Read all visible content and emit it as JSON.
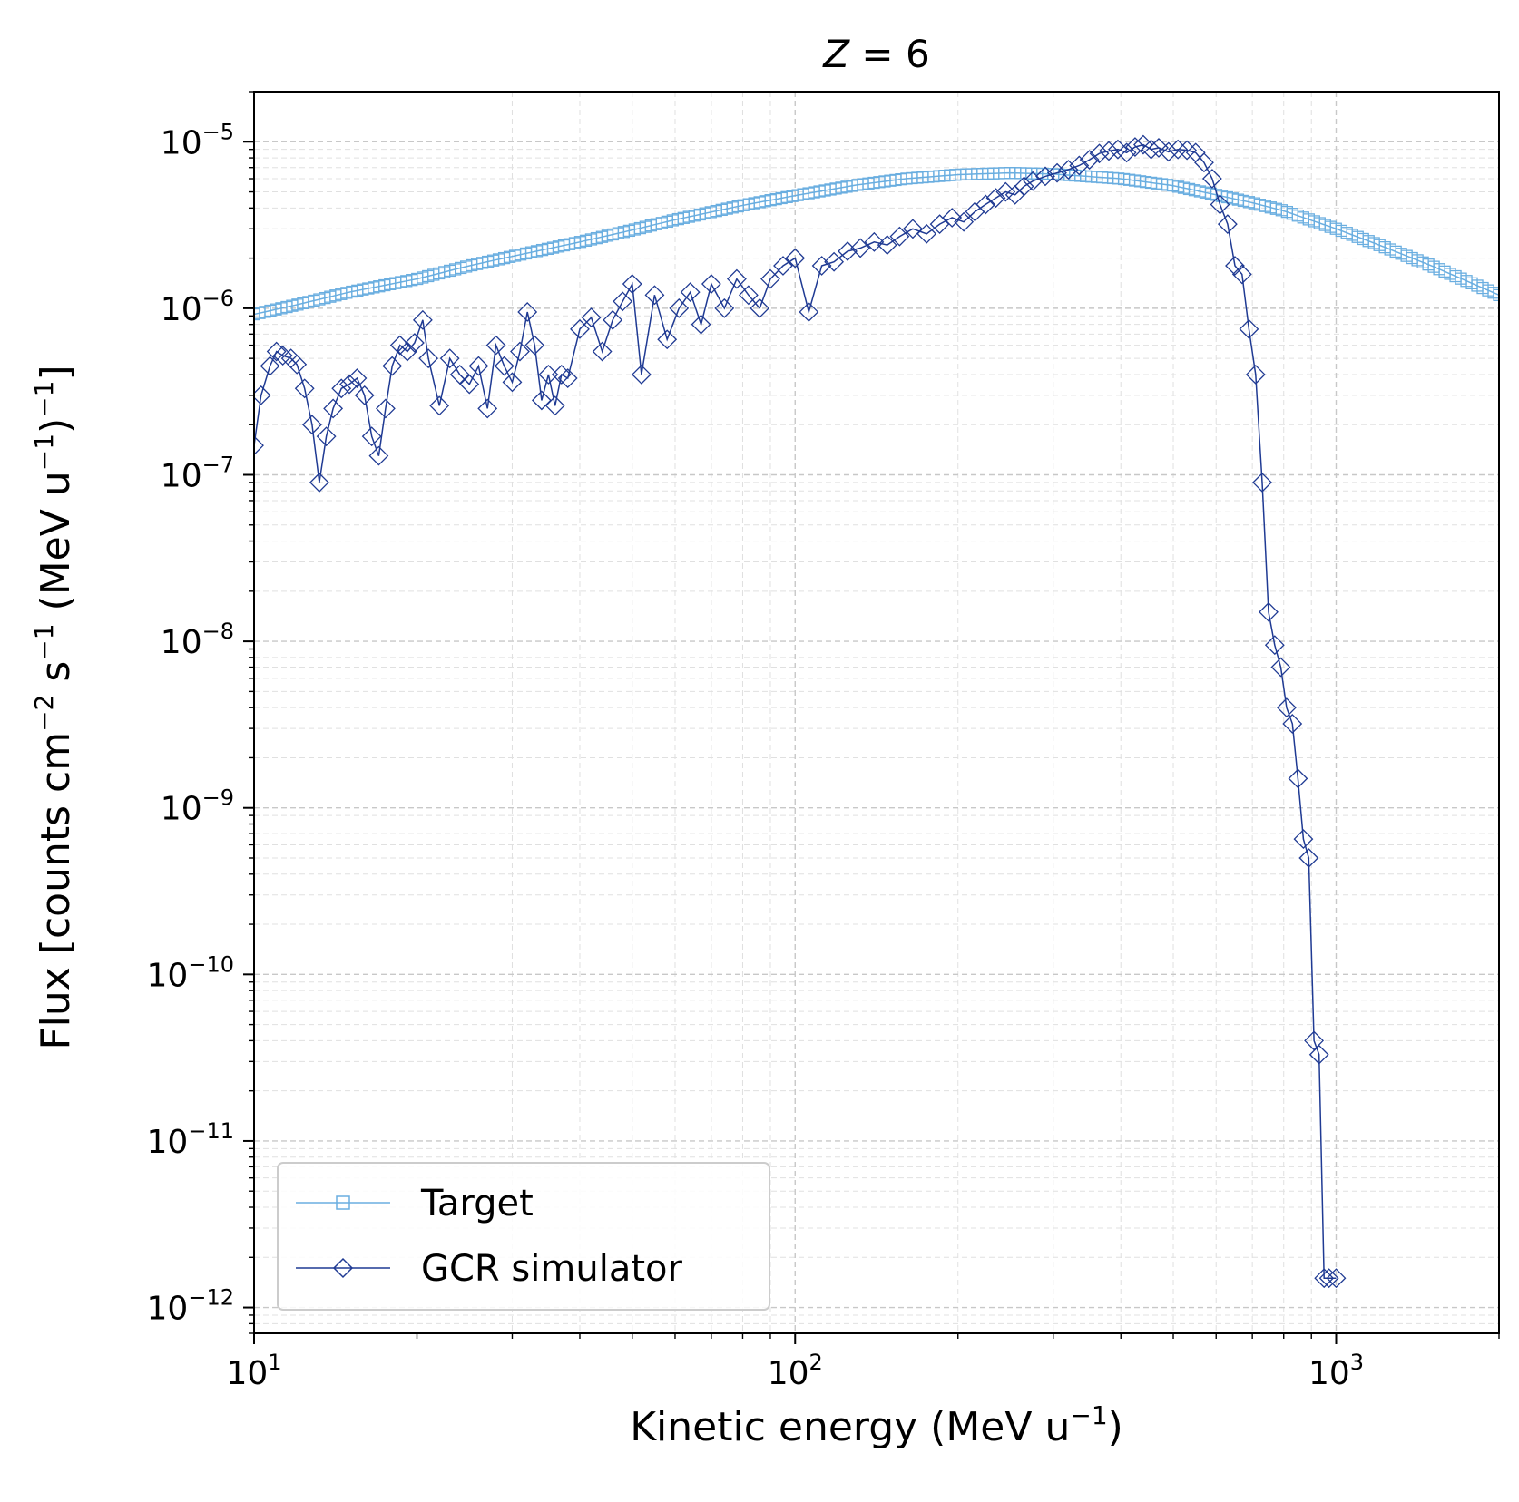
{
  "chart_data": {
    "type": "line",
    "title_prefix": "Z",
    "title_op": " = ",
    "title_value": "6",
    "xlabel": "Kinetic energy (MeV u",
    "xlabel_exp": "−1",
    "xlabel_tail": ")",
    "ylabel": "Flux [counts cm",
    "ylabel_exp1": "−2",
    "ylabel_mid": " s",
    "ylabel_exp2": "−1",
    "ylabel_mid2": " (MeV u",
    "ylabel_exp3": "−1",
    "ylabel_mid3": ")",
    "ylabel_exp4": "−1",
    "ylabel_tail": "]",
    "xscale": "log",
    "yscale": "log",
    "xlim": [
      10,
      2000
    ],
    "ylim": [
      7e-13,
      2e-05
    ],
    "grid": true,
    "legend_position": "lower-left",
    "x_ticks": [
      {
        "base": "10",
        "exp": "1",
        "value": 10
      },
      {
        "base": "10",
        "exp": "2",
        "value": 100
      },
      {
        "base": "10",
        "exp": "3",
        "value": 1000
      }
    ],
    "y_ticks": [
      {
        "base": "10",
        "exp": "−5",
        "value": 1e-05
      },
      {
        "base": "10",
        "exp": "−6",
        "value": 1e-06
      },
      {
        "base": "10",
        "exp": "−7",
        "value": 1e-07
      },
      {
        "base": "10",
        "exp": "−8",
        "value": 1e-08
      },
      {
        "base": "10",
        "exp": "−9",
        "value": 1e-09
      },
      {
        "base": "10",
        "exp": "−10",
        "value": 1e-10
      },
      {
        "base": "10",
        "exp": "−11",
        "value": 1e-11
      },
      {
        "base": "10",
        "exp": "−12",
        "value": 1e-12
      }
    ],
    "series": [
      {
        "name": "Target",
        "color": "#6aaee0",
        "marker": "square",
        "x": [
          10,
          12,
          15,
          20,
          25,
          30,
          40,
          50,
          60,
          80,
          100,
          130,
          160,
          200,
          250,
          300,
          400,
          500,
          600,
          700,
          800,
          1000,
          1200,
          1500,
          2000
        ],
        "y": [
          9.2e-07,
          1.05e-06,
          1.25e-06,
          1.5e-06,
          1.8e-06,
          2.05e-06,
          2.5e-06,
          2.95e-06,
          3.4e-06,
          4.15e-06,
          4.75e-06,
          5.5e-06,
          6e-06,
          6.35e-06,
          6.5e-06,
          6.4e-06,
          6e-06,
          5.45e-06,
          4.8e-06,
          4.3e-06,
          3.85e-06,
          3e-06,
          2.4e-06,
          1.8e-06,
          1.2e-06
        ]
      },
      {
        "name": "GCR simulator",
        "color": "#1f3a93",
        "marker": "diamond",
        "x": [
          10,
          10.3,
          10.7,
          11,
          11.3,
          11.7,
          12,
          12.4,
          12.8,
          13.2,
          13.6,
          14,
          14.5,
          15,
          15.5,
          16,
          16.5,
          17,
          17.5,
          18,
          18.6,
          19.2,
          19.8,
          20.5,
          21,
          22,
          23,
          24,
          25,
          26,
          27,
          28,
          29,
          30,
          31,
          32,
          33,
          34,
          35,
          36,
          37,
          38,
          40,
          42,
          44,
          46,
          48,
          50,
          52,
          55,
          58,
          61,
          64,
          67,
          70,
          74,
          78,
          82,
          86,
          90,
          95,
          100,
          106,
          112,
          118,
          125,
          132,
          140,
          148,
          156,
          165,
          175,
          185,
          195,
          205,
          215,
          225,
          235,
          245,
          255,
          265,
          275,
          290,
          305,
          320,
          335,
          350,
          365,
          380,
          395,
          410,
          425,
          440,
          455,
          470,
          490,
          510,
          530,
          550,
          570,
          590,
          610,
          630,
          650,
          670,
          690,
          710,
          730,
          750,
          770,
          790,
          810,
          830,
          850,
          870,
          890,
          910,
          930,
          950,
          970,
          1000
        ],
        "y": [
          1.5e-07,
          3e-07,
          4.5e-07,
          5.5e-07,
          5.2e-07,
          5e-07,
          4.6e-07,
          3.3e-07,
          2e-07,
          9e-08,
          1.7e-07,
          2.5e-07,
          3.3e-07,
          3.5e-07,
          3.8e-07,
          3e-07,
          1.7e-07,
          1.3e-07,
          2.5e-07,
          4.5e-07,
          6e-07,
          5.5e-07,
          6.2e-07,
          8.5e-07,
          5e-07,
          2.6e-07,
          5e-07,
          4e-07,
          3.5e-07,
          4.5e-07,
          2.5e-07,
          6e-07,
          4.5e-07,
          3.6e-07,
          5.5e-07,
          9.5e-07,
          6e-07,
          2.8e-07,
          4e-07,
          2.6e-07,
          4e-07,
          3.8e-07,
          7.5e-07,
          8.8e-07,
          5.5e-07,
          8.5e-07,
          1.1e-06,
          1.4e-06,
          4e-07,
          1.2e-06,
          6.5e-07,
          1e-06,
          1.25e-06,
          8e-07,
          1.4e-06,
          1e-06,
          1.5e-06,
          1.2e-06,
          1e-06,
          1.5e-06,
          1.8e-06,
          2e-06,
          9.5e-07,
          1.8e-06,
          1.9e-06,
          2.2e-06,
          2.3e-06,
          2.5e-06,
          2.4e-06,
          2.7e-06,
          3e-06,
          2.8e-06,
          3.2e-06,
          3.5e-06,
          3.3e-06,
          3.8e-06,
          4.2e-06,
          4.6e-06,
          5e-06,
          4.8e-06,
          5.4e-06,
          5.8e-06,
          6.2e-06,
          6.5e-06,
          6.8e-06,
          7.2e-06,
          7.8e-06,
          8.5e-06,
          8.8e-06,
          9e-06,
          8.6e-06,
          9.3e-06,
          9.6e-06,
          9e-06,
          9.2e-06,
          8.7e-06,
          9e-06,
          8.9e-06,
          8.6e-06,
          7.5e-06,
          6e-06,
          4.2e-06,
          3.2e-06,
          1.8e-06,
          1.6e-06,
          7.5e-07,
          4e-07,
          9e-08,
          1.5e-08,
          9.5e-09,
          7e-09,
          4e-09,
          3.2e-09,
          1.5e-09,
          6.5e-10,
          5e-10,
          4e-11,
          3.3e-11,
          1.5e-12,
          1.5e-12,
          1.5e-12
        ]
      }
    ]
  }
}
